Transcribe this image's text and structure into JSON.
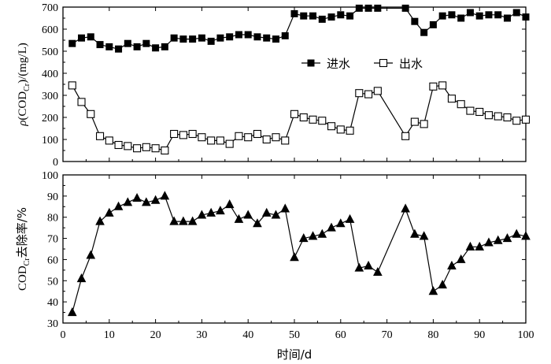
{
  "chart_data": [
    {
      "type": "line",
      "panel": "top",
      "ylabel": "ρ(COD_Cr)/(mg/L)",
      "ylim": [
        0,
        700
      ],
      "yticks": [
        0,
        100,
        200,
        300,
        400,
        500,
        600,
        700
      ],
      "xlim": [
        0,
        100
      ],
      "grid": false,
      "legend_position": "upper-right",
      "series": [
        {
          "name": "进水",
          "marker": "square-filled",
          "x": [
            2,
            4,
            6,
            8,
            10,
            12,
            14,
            16,
            18,
            20,
            22,
            24,
            26,
            28,
            30,
            32,
            34,
            36,
            38,
            40,
            42,
            44,
            46,
            48,
            50,
            52,
            54,
            56,
            58,
            60,
            62,
            64,
            66,
            68,
            74,
            76,
            78,
            80,
            82,
            84,
            86,
            88,
            90,
            92,
            94,
            96,
            98,
            100
          ],
          "y": [
            535,
            560,
            565,
            530,
            520,
            510,
            535,
            520,
            535,
            515,
            520,
            560,
            555,
            555,
            560,
            545,
            560,
            565,
            575,
            575,
            565,
            560,
            555,
            570,
            670,
            660,
            660,
            645,
            655,
            665,
            660,
            695,
            695,
            695,
            695,
            635,
            585,
            620,
            660,
            665,
            650,
            675,
            660,
            665,
            665,
            650,
            675,
            655
          ]
        },
        {
          "name": "出水",
          "marker": "square-open",
          "x": [
            2,
            4,
            6,
            8,
            10,
            12,
            14,
            16,
            18,
            20,
            22,
            24,
            26,
            28,
            30,
            32,
            34,
            36,
            38,
            40,
            42,
            44,
            46,
            48,
            50,
            52,
            54,
            56,
            58,
            60,
            62,
            64,
            66,
            68,
            74,
            76,
            78,
            80,
            82,
            84,
            86,
            88,
            90,
            92,
            94,
            96,
            98,
            100
          ],
          "y": [
            345,
            270,
            215,
            115,
            95,
            75,
            70,
            60,
            65,
            60,
            50,
            125,
            120,
            125,
            110,
            95,
            95,
            80,
            115,
            110,
            125,
            100,
            110,
            95,
            215,
            200,
            190,
            185,
            160,
            145,
            140,
            310,
            305,
            320,
            115,
            180,
            170,
            340,
            345,
            285,
            260,
            230,
            225,
            210,
            205,
            200,
            185,
            190
          ]
        }
      ]
    },
    {
      "type": "line",
      "panel": "bottom",
      "xlabel": "时间/d",
      "ylabel": "COD_Cr去除率/%",
      "xlim": [
        0,
        100
      ],
      "xticks": [
        0,
        10,
        20,
        30,
        40,
        50,
        60,
        70,
        80,
        90,
        100
      ],
      "ylim": [
        30,
        100
      ],
      "yticks": [
        30,
        40,
        50,
        60,
        70,
        80,
        90,
        100
      ],
      "grid": false,
      "series": [
        {
          "marker": "triangle-filled",
          "x": [
            2,
            4,
            6,
            8,
            10,
            12,
            14,
            16,
            18,
            20,
            22,
            24,
            26,
            28,
            30,
            32,
            34,
            36,
            38,
            40,
            42,
            44,
            46,
            48,
            50,
            52,
            54,
            56,
            58,
            60,
            62,
            64,
            66,
            68,
            74,
            76,
            78,
            80,
            82,
            84,
            86,
            88,
            90,
            92,
            94,
            96,
            98,
            100
          ],
          "y": [
            35,
            51,
            62,
            78,
            82,
            85,
            87,
            89,
            87,
            88,
            90,
            78,
            78,
            78,
            81,
            82,
            83,
            86,
            79,
            81,
            77,
            82,
            81,
            84,
            61,
            70,
            71,
            72,
            75,
            77,
            79,
            56,
            57,
            54,
            84,
            72,
            71,
            45,
            48,
            57,
            60,
            66,
            66,
            68,
            69,
            70,
            72,
            71
          ]
        }
      ]
    }
  ]
}
